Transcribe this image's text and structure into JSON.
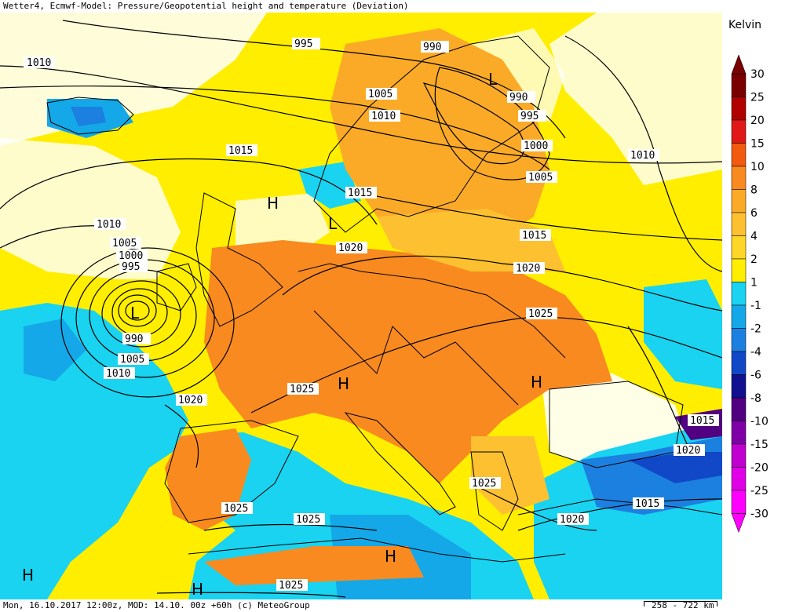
{
  "title": "Wetter4, Ecmwf-Model: Pressure/Geopotential height and temperature (Deviation)",
  "footer": {
    "run_info": "Mon, 16.10.2017 12:00z, MOD: 14.10. 00z +60h (c) MeteoGroup",
    "scale": "258 - 722 km"
  },
  "legend": {
    "unit": "Kelvin",
    "levels": [
      "30",
      "25",
      "20",
      "15",
      "10",
      "8",
      "6",
      "4",
      "2",
      "1",
      "-1",
      "-2",
      "-4",
      "-6",
      "-8",
      "-10",
      "-15",
      "-20",
      "-25",
      "-30"
    ],
    "colors": {
      "30": "#7a0000",
      "25": "#b00000",
      "20": "#e01818",
      "15": "#f25a10",
      "10": "#f88a20",
      "8": "#fbaa28",
      "6": "#fcc030",
      "4": "#fdd628",
      "2": "#ffee00",
      "1": "#ffffff",
      "-1": "#19d3f0",
      "-2": "#14a8e8",
      "-4": "#1c80e0",
      "-6": "#1048c8",
      "-8": "#101090",
      "-10": "#500080",
      "-15": "#8000a8",
      "-20": "#c000d0",
      "-25": "#e000e8",
      "-30": "#ff00ff"
    }
  },
  "isobar_labels": [
    "1010",
    "995",
    "990",
    "1005",
    "1010",
    "990",
    "995",
    "1000",
    "1015",
    "1005",
    "1010",
    "1015",
    "1015",
    "1010",
    "1005",
    "1000",
    "995",
    "1020",
    "1020",
    "1025",
    "990",
    "1005",
    "1010",
    "1020",
    "1025",
    "1015",
    "1020",
    "1025",
    "1025",
    "1025",
    "1020",
    "1015",
    "1025"
  ],
  "pressure_centers": [
    "L",
    "H",
    "L",
    "H",
    "H",
    "H",
    "H",
    "H",
    "L"
  ]
}
